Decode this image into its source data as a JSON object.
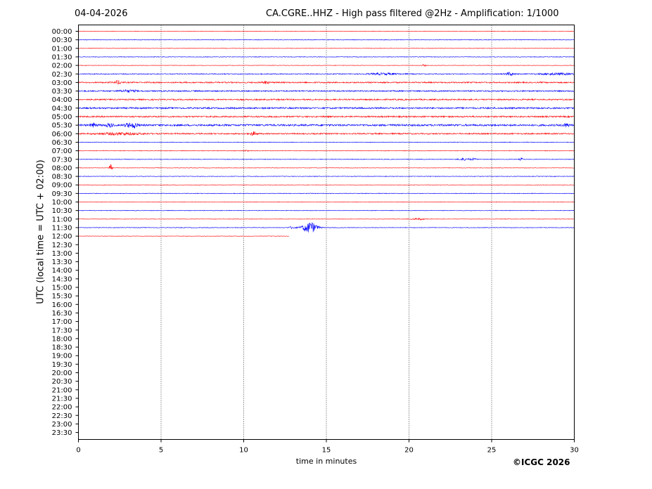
{
  "header": {
    "date": "04-04-2026",
    "title": "CA.CGRE..HHZ - High pass filtered @2Hz - Amplification: 1/1000"
  },
  "footer": {
    "copyright": "©ICGC 2026"
  },
  "chart_data": {
    "type": "line",
    "title": "CA.CGRE..HHZ - High pass filtered @2Hz - Amplification: 1/1000",
    "xlabel": "time in minutes",
    "ylabel": "UTC (local time = UTC + 02:00)",
    "xlim": [
      0,
      30
    ],
    "xticks": [
      0,
      5,
      10,
      15,
      20,
      25,
      30
    ],
    "yticks": [
      "00:00",
      "00:30",
      "01:00",
      "01:30",
      "02:00",
      "02:30",
      "03:00",
      "03:30",
      "04:00",
      "04:30",
      "05:00",
      "05:30",
      "06:00",
      "06:30",
      "07:00",
      "07:30",
      "08:00",
      "08:30",
      "09:00",
      "09:30",
      "10:00",
      "10:30",
      "11:00",
      "11:30",
      "12:00",
      "12:30",
      "13:00",
      "13:30",
      "14:00",
      "14:30",
      "15:00",
      "15:30",
      "16:00",
      "16:30",
      "17:00",
      "17:30",
      "18:00",
      "18:30",
      "19:00",
      "19:30",
      "20:00",
      "20:30",
      "21:00",
      "21:30",
      "22:00",
      "22:30",
      "23:00",
      "23:30"
    ],
    "grid": {
      "vertical_dotted": true
    },
    "colors": {
      "even_trace": "#ff0000",
      "odd_trace": "#0000ff"
    },
    "traces": [
      {
        "label": "00:00",
        "end_min": 30,
        "noise": 0.3,
        "events": []
      },
      {
        "label": "00:30",
        "end_min": 30,
        "noise": 0.4,
        "events": []
      },
      {
        "label": "01:00",
        "end_min": 30,
        "noise": 0.3,
        "events": []
      },
      {
        "label": "01:30",
        "end_min": 30,
        "noise": 0.4,
        "events": []
      },
      {
        "label": "02:00",
        "end_min": 30,
        "noise": 0.3,
        "events": [
          {
            "t": 20.9,
            "amp": 1.5,
            "width": 0.1
          }
        ]
      },
      {
        "label": "02:30",
        "end_min": 30,
        "noise": 0.6,
        "events": [
          {
            "t": 18.5,
            "amp": 1.2,
            "width": 1.0
          },
          {
            "t": 26.1,
            "amp": 2.2,
            "width": 0.3
          },
          {
            "t": 29.0,
            "amp": 1.2,
            "width": 1.2
          }
        ]
      },
      {
        "label": "03:00",
        "end_min": 30,
        "noise": 0.9,
        "events": [
          {
            "t": 2.4,
            "amp": 2.5,
            "width": 0.2
          },
          {
            "t": 11.3,
            "amp": 1.8,
            "width": 0.2
          }
        ]
      },
      {
        "label": "03:30",
        "end_min": 30,
        "noise": 0.9,
        "events": [
          {
            "t": 3.0,
            "amp": 1.4,
            "width": 0.5
          }
        ]
      },
      {
        "label": "04:00",
        "end_min": 30,
        "noise": 0.9,
        "events": []
      },
      {
        "label": "04:30",
        "end_min": 30,
        "noise": 1.1,
        "events": []
      },
      {
        "label": "05:00",
        "end_min": 30,
        "noise": 1.0,
        "events": []
      },
      {
        "label": "05:30",
        "end_min": 30,
        "noise": 1.3,
        "events": [
          {
            "t": 0.9,
            "amp": 2.5,
            "width": 0.2
          },
          {
            "t": 1.9,
            "amp": 2.5,
            "width": 0.2
          },
          {
            "t": 3.0,
            "amp": 2.5,
            "width": 0.2
          },
          {
            "t": 3.4,
            "amp": 3.5,
            "width": 0.2
          },
          {
            "t": 29.5,
            "amp": 2.2,
            "width": 0.2
          }
        ]
      },
      {
        "label": "06:00",
        "end_min": 30,
        "noise": 0.9,
        "events": [
          {
            "t": 2.5,
            "amp": 1.5,
            "width": 1.2
          },
          {
            "t": 10.6,
            "amp": 2.5,
            "width": 0.2
          }
        ]
      },
      {
        "label": "06:30",
        "end_min": 30,
        "noise": 0.4,
        "events": []
      },
      {
        "label": "07:00",
        "end_min": 30,
        "noise": 0.4,
        "events": [
          {
            "t": 10.2,
            "amp": 1.5,
            "width": 0.1
          }
        ]
      },
      {
        "label": "07:30",
        "end_min": 30,
        "noise": 0.4,
        "events": [
          {
            "t": 23.3,
            "amp": 1.5,
            "width": 0.3
          },
          {
            "t": 23.9,
            "amp": 1.5,
            "width": 0.2
          },
          {
            "t": 26.8,
            "amp": 1.8,
            "width": 0.1
          }
        ]
      },
      {
        "label": "08:00",
        "end_min": 30,
        "noise": 0.3,
        "events": [
          {
            "t": 1.95,
            "amp": 5.0,
            "width": 0.08
          }
        ]
      },
      {
        "label": "08:30",
        "end_min": 30,
        "noise": 0.4,
        "events": []
      },
      {
        "label": "09:00",
        "end_min": 30,
        "noise": 0.3,
        "events": []
      },
      {
        "label": "09:30",
        "end_min": 30,
        "noise": 0.4,
        "events": []
      },
      {
        "label": "10:00",
        "end_min": 30,
        "noise": 0.3,
        "events": []
      },
      {
        "label": "10:30",
        "end_min": 30,
        "noise": 0.4,
        "events": []
      },
      {
        "label": "11:00",
        "end_min": 30,
        "noise": 0.3,
        "events": [
          {
            "t": 20.6,
            "amp": 1.2,
            "width": 0.4
          }
        ]
      },
      {
        "label": "11:30",
        "end_min": 30,
        "noise": 0.4,
        "events": [
          {
            "t": 12.9,
            "amp": 1.5,
            "width": 0.2
          },
          {
            "t": 14.0,
            "amp": 8.0,
            "width": 0.45
          }
        ]
      },
      {
        "label": "12:00",
        "end_min": 12.75,
        "noise": 0.3,
        "events": []
      }
    ]
  }
}
